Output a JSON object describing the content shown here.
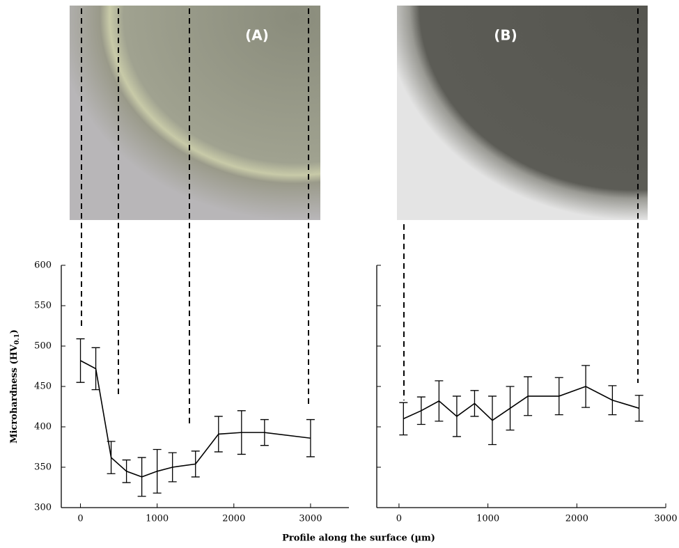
{
  "figure": {
    "xlabel": "Profile along the surface (µm)",
    "ylabel": [
      "Microhardness (HV",
      "0.1",
      ")"
    ]
  },
  "chart_data": [
    {
      "type": "line",
      "panel_label": "(A)",
      "color": "#000000",
      "x": [
        0,
        200,
        400,
        600,
        800,
        1000,
        1200,
        1500,
        1800,
        2100,
        2400,
        3000
      ],
      "values": [
        482,
        472,
        362,
        345,
        338,
        345,
        350,
        354,
        391,
        393,
        393,
        386
      ],
      "errors": [
        27,
        26,
        20,
        14,
        24,
        27,
        18,
        16,
        22,
        27,
        16,
        23
      ],
      "xlim": [
        -250,
        3500
      ],
      "xticks": [
        0,
        1000,
        2000,
        3000
      ],
      "ylim": [
        300,
        600
      ],
      "yticks": [
        300,
        350,
        400,
        450,
        500,
        550,
        600
      ],
      "show_ytick_labels": true
    },
    {
      "type": "line",
      "panel_label": "(B)",
      "color": "#000000",
      "x": [
        50,
        250,
        450,
        650,
        850,
        1050,
        1250,
        1450,
        1800,
        2100,
        2400,
        2700
      ],
      "values": [
        410,
        420,
        432,
        413,
        429,
        408,
        423,
        438,
        438,
        450,
        433,
        423
      ],
      "errors": [
        20,
        17,
        25,
        25,
        16,
        30,
        27,
        24,
        23,
        26,
        18,
        16
      ],
      "xlim": [
        -250,
        3000
      ],
      "xticks": [
        0,
        1000,
        2000,
        3000
      ],
      "ylim": [
        300,
        600
      ],
      "yticks": [
        300,
        350,
        400,
        450,
        500,
        550,
        600
      ],
      "show_ytick_labels": false
    }
  ]
}
